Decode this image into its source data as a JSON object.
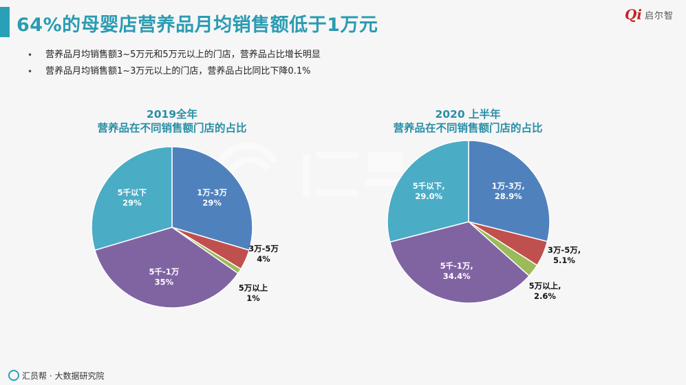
{
  "title": "64%的母婴店营养品月均销售额低于1万元",
  "logo": {
    "mark": "Qi",
    "text": "启尔智"
  },
  "bullets": [
    "营养品月均销售额3~5万元和5万元以上的门店，营养品占比增长明显",
    "营养品月均销售额1~3万元以上的门店，营养品占比同比下降0.1%"
  ],
  "footer": {
    "text": "汇员帮 · 大数据研究院"
  },
  "colors": {
    "slice_1w_3w": "#4f81bd",
    "slice_3w_5w": "#c0504d",
    "slice_5w_plus": "#9bbb59",
    "slice_5k_1w": "#8064a2",
    "slice_under_5k": "#4bacc6",
    "accent": "#2a9bb3"
  },
  "chart_data": [
    {
      "type": "pie",
      "title": "2019全年",
      "subtitle": "营养品在不同销售额门店的占比",
      "slices": [
        {
          "label": "1万-3万",
          "value": 29,
          "value_text": "29%",
          "color_key": "slice_1w_3w",
          "label_inside": true
        },
        {
          "label": "3万-5万",
          "value": 4,
          "value_text": "4%",
          "color_key": "slice_3w_5w",
          "label_inside": false
        },
        {
          "label": "5万以上",
          "value": 1,
          "value_text": "1%",
          "color_key": "slice_5w_plus",
          "label_inside": false
        },
        {
          "label": "5千-1万",
          "value": 35,
          "value_text": "35%",
          "color_key": "slice_5k_1w",
          "label_inside": true
        },
        {
          "label": "5千以下",
          "value": 29,
          "value_text": "29%",
          "color_key": "slice_under_5k",
          "label_inside": true
        }
      ]
    },
    {
      "type": "pie",
      "title": "2020 上半年",
      "subtitle": "营养品在不同销售额门店的占比",
      "slices": [
        {
          "label": "1万-3万,",
          "value": 28.9,
          "value_text": "28.9%",
          "color_key": "slice_1w_3w",
          "label_inside": true
        },
        {
          "label": "3万-5万,",
          "value": 5.1,
          "value_text": "5.1%",
          "color_key": "slice_3w_5w",
          "label_inside": false
        },
        {
          "label": "5万以上,",
          "value": 2.6,
          "value_text": "2.6%",
          "color_key": "slice_5w_plus",
          "label_inside": false
        },
        {
          "label": "5千-1万,",
          "value": 34.4,
          "value_text": "34.4%",
          "color_key": "slice_5k_1w",
          "label_inside": true
        },
        {
          "label": "5千以下,",
          "value": 29.0,
          "value_text": "29.0%",
          "color_key": "slice_under_5k",
          "label_inside": true
        }
      ]
    }
  ]
}
